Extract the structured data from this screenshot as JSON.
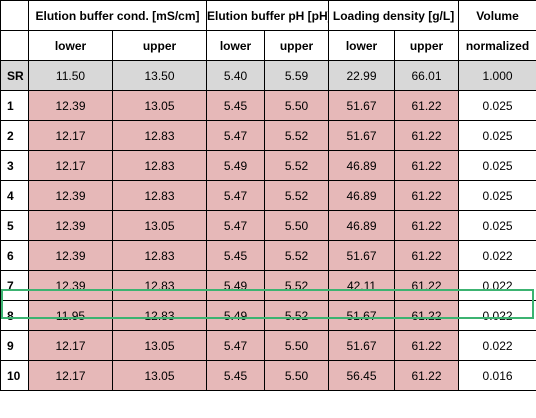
{
  "table": {
    "group_headers": [
      "Elution buffer cond. [mS/cm]",
      "Elution buffer pH [pH]",
      "Loading density [g/L]",
      "Volume"
    ],
    "sub_headers": [
      "lower",
      "upper",
      "lower",
      "upper",
      "lower",
      "upper",
      "normalized"
    ],
    "rows": [
      {
        "label": "SR",
        "cells": [
          "11.50",
          "13.50",
          "5.40",
          "5.59",
          "22.99",
          "66.01",
          "1.000"
        ]
      },
      {
        "label": "1",
        "cells": [
          "12.39",
          "13.05",
          "5.45",
          "5.50",
          "51.67",
          "61.22",
          "0.025"
        ]
      },
      {
        "label": "2",
        "cells": [
          "12.17",
          "12.83",
          "5.47",
          "5.52",
          "51.67",
          "61.22",
          "0.025"
        ]
      },
      {
        "label": "3",
        "cells": [
          "12.17",
          "12.83",
          "5.49",
          "5.52",
          "46.89",
          "61.22",
          "0.025"
        ]
      },
      {
        "label": "4",
        "cells": [
          "12.39",
          "12.83",
          "5.47",
          "5.52",
          "46.89",
          "61.22",
          "0.025"
        ]
      },
      {
        "label": "5",
        "cells": [
          "12.39",
          "13.05",
          "5.47",
          "5.50",
          "46.89",
          "61.22",
          "0.025"
        ]
      },
      {
        "label": "6",
        "cells": [
          "12.39",
          "12.83",
          "5.45",
          "5.52",
          "51.67",
          "61.22",
          "0.022"
        ]
      },
      {
        "label": "7",
        "cells": [
          "12.39",
          "12.83",
          "5.49",
          "5.52",
          "42.11",
          "61.22",
          "0.022"
        ]
      },
      {
        "label": "8",
        "cells": [
          "11.95",
          "12.83",
          "5.49",
          "5.52",
          "51.67",
          "61.22",
          "0.022"
        ]
      },
      {
        "label": "9",
        "cells": [
          "12.17",
          "13.05",
          "5.47",
          "5.50",
          "51.67",
          "61.22",
          "0.022"
        ]
      },
      {
        "label": "10",
        "cells": [
          "12.17",
          "13.05",
          "5.45",
          "5.50",
          "56.45",
          "61.22",
          "0.016"
        ]
      }
    ]
  },
  "colors": {
    "reference_row": "#d8d8d8",
    "data_cells": "#e6b8b8",
    "highlight_border": "#3cb371"
  }
}
